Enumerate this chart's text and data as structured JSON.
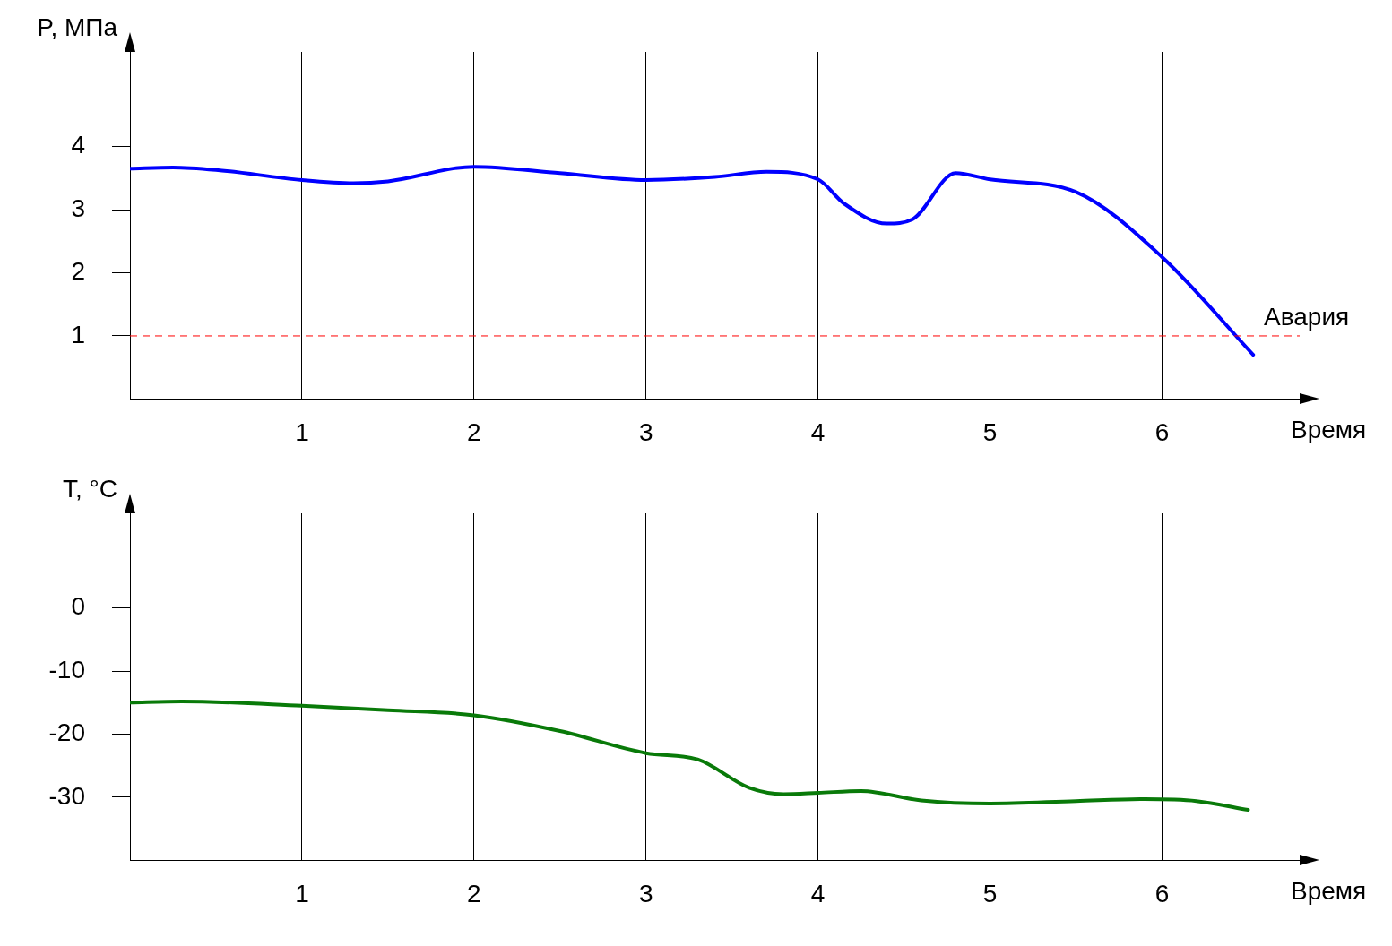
{
  "chart_data": [
    {
      "type": "line",
      "xlabel": "Время",
      "ylabel": "P, МПа",
      "xlim": [
        0,
        6.8
      ],
      "xticks": [
        1,
        2,
        3,
        4,
        5,
        6
      ],
      "ylim": [
        0,
        5.5
      ],
      "yticks": [
        1,
        2,
        3,
        4
      ],
      "grid": "x",
      "marker": "none",
      "line_style": "solid",
      "legend": false,
      "x": [
        0,
        0.25,
        0.5,
        1,
        1.3,
        1.5,
        2,
        2.5,
        3,
        3.4,
        3.7,
        4,
        4.15,
        4.4,
        4.55,
        4.8,
        5,
        5.5,
        6,
        6.53
      ],
      "series": [
        {
          "color": "#0000ff",
          "values": [
            3.65,
            3.67,
            3.63,
            3.47,
            3.42,
            3.45,
            3.68,
            3.58,
            3.47,
            3.52,
            3.6,
            3.48,
            3.1,
            2.78,
            2.85,
            3.58,
            3.48,
            3.28,
            2.25,
            0.7
          ]
        }
      ],
      "ref_lines": [
        {
          "axis": "y",
          "value": 1,
          "label": "Авария",
          "color": "#ff0000",
          "line_style": "dashed"
        }
      ]
    },
    {
      "type": "line",
      "xlabel": "Время",
      "ylabel": "T, °C",
      "xlim": [
        0,
        6.8
      ],
      "xticks": [
        1,
        2,
        3,
        4,
        5,
        6
      ],
      "ylim": [
        -40,
        15
      ],
      "yticks": [
        -30,
        -20,
        -10,
        0
      ],
      "grid": "x",
      "marker": "none",
      "line_style": "solid",
      "legend": false,
      "x": [
        0,
        0.3,
        1,
        1.5,
        2,
        2.5,
        3,
        3.3,
        3.6,
        3.8,
        4,
        4.25,
        4.6,
        5,
        5.5,
        5.9,
        6.2,
        6.5
      ],
      "series": [
        {
          "color": "#097a09",
          "values": [
            -15,
            -14.8,
            -15.5,
            -16.2,
            -17,
            -19.5,
            -23,
            -24,
            -28.5,
            -29.5,
            -29.3,
            -29,
            -30.5,
            -31,
            -30.6,
            -30.3,
            -30.6,
            -32
          ]
        }
      ]
    }
  ]
}
